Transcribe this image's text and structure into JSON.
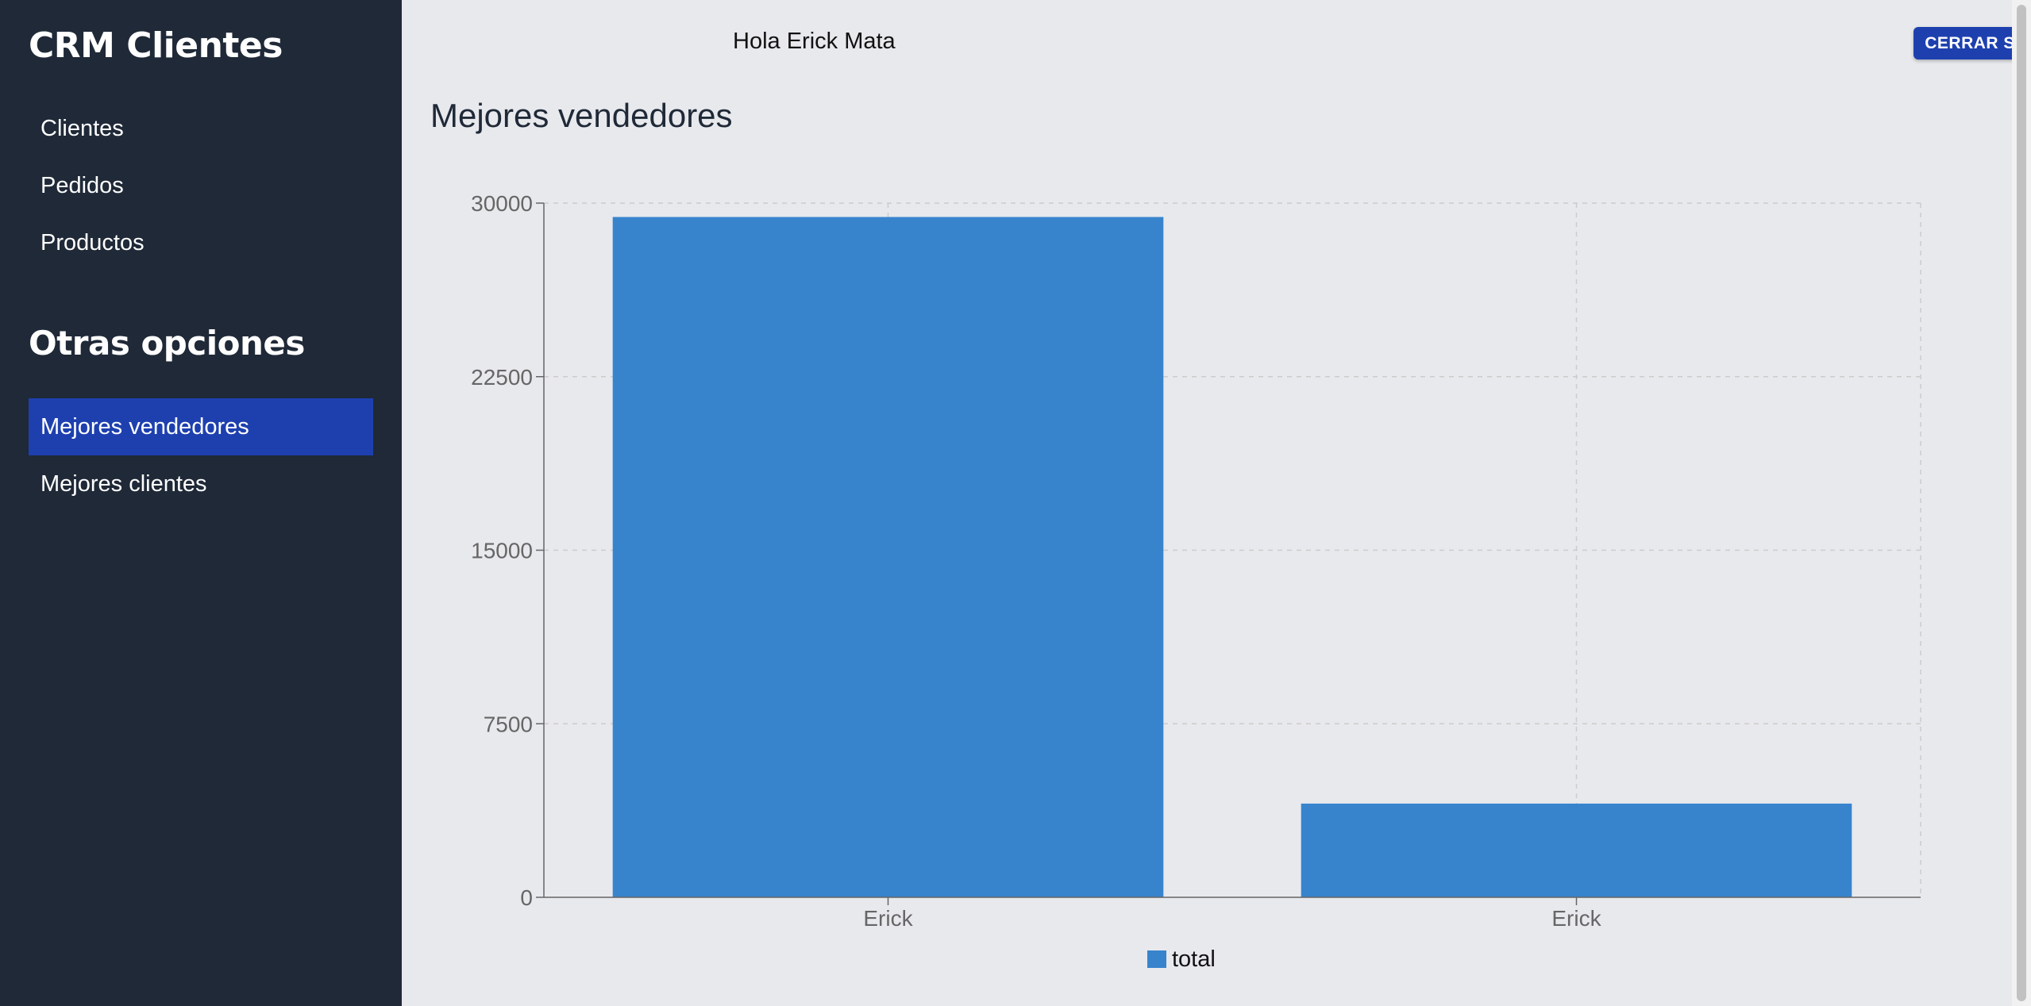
{
  "sidebar": {
    "brand": "CRM Clientes",
    "items": [
      {
        "label": "Clientes"
      },
      {
        "label": "Pedidos"
      },
      {
        "label": "Productos"
      }
    ],
    "section_title": "Otras opciones",
    "other_items": [
      {
        "label": "Mejores vendedores",
        "active": true
      },
      {
        "label": "Mejores clientes",
        "active": false
      }
    ]
  },
  "header": {
    "greeting": "Hola Erick Mata",
    "logout_label": "CERRAR SESIÓN"
  },
  "main": {
    "title": "Mejores vendedores"
  },
  "colors": {
    "sidebar_bg": "#1f2937",
    "accent": "#1e40af",
    "bar": "#3784cd",
    "page_bg": "#e8e9ed"
  },
  "chart_data": {
    "type": "bar",
    "categories": [
      "Erick",
      "Erick"
    ],
    "series": [
      {
        "name": "total",
        "values": [
          29400,
          4050
        ]
      }
    ],
    "yticks": [
      0,
      7500,
      15000,
      22500,
      30000
    ],
    "ylim": [
      0,
      30000
    ],
    "grid": true,
    "legend": "bottom-center"
  }
}
